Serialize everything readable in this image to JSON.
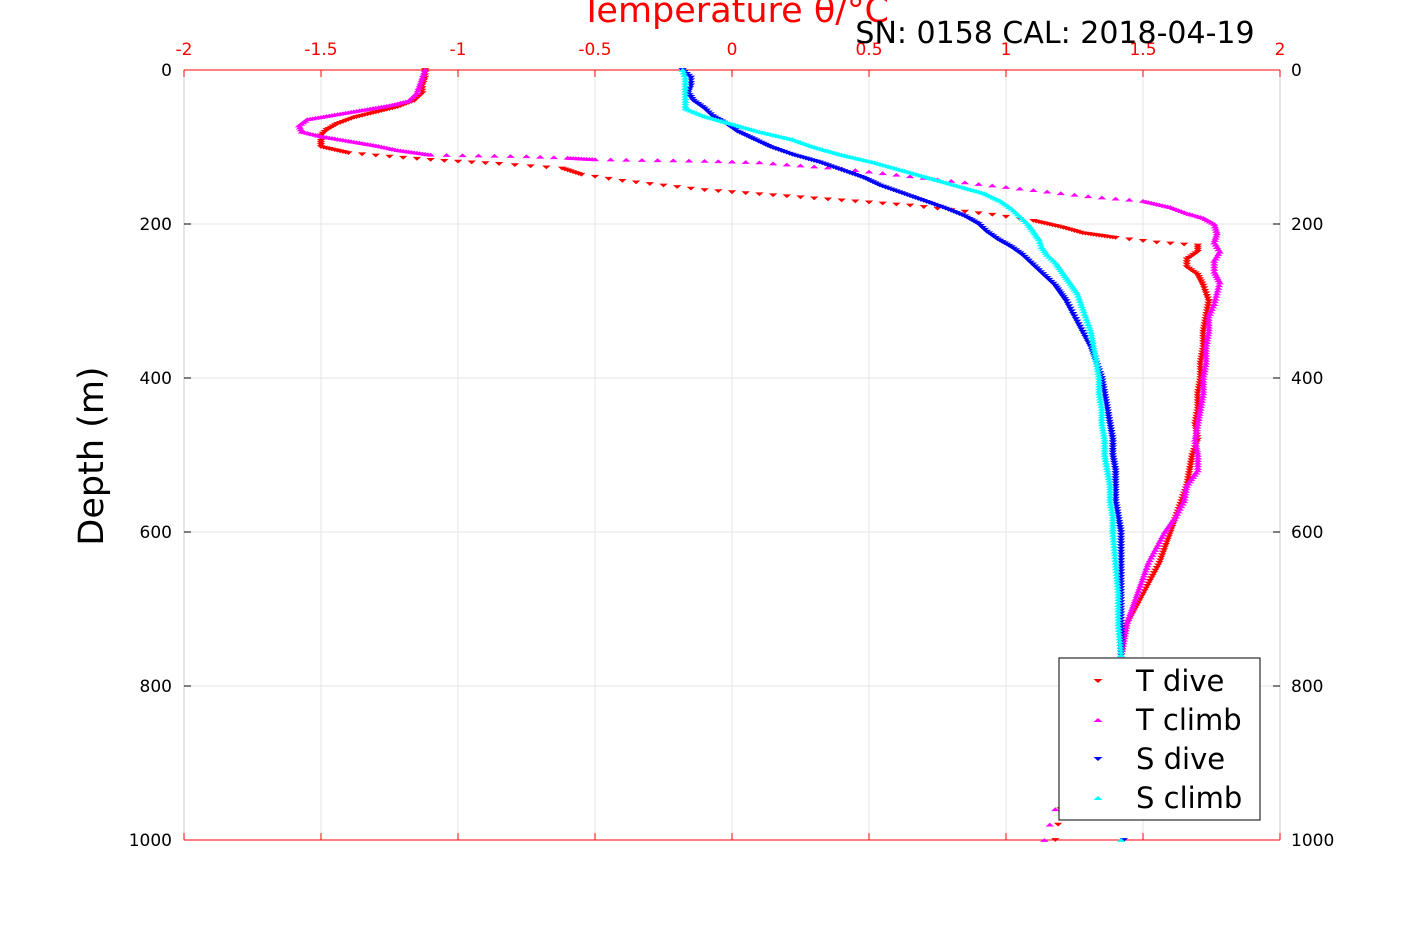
{
  "chart_data": {
    "type": "scatter",
    "title": "Temperature θ/°C",
    "subtitle": "SN: 0158  CAL: 2018-04-19",
    "xlabel": "Temperature θ/°C",
    "ylabel": "Depth (m)",
    "xlim": [
      -2,
      2
    ],
    "ylim": [
      0,
      1000
    ],
    "y_inverted": true,
    "grid": true,
    "x_axis_position": "top",
    "x_axis_color": "#ff0000",
    "x_ticks": [
      "-2",
      "-1.5",
      "-1",
      "-0.5",
      "0",
      "0.5",
      "1",
      "1.5",
      "2"
    ],
    "y_ticks": [
      "0",
      "200",
      "400",
      "600",
      "800",
      "1000"
    ],
    "legend_position": "bottom-right",
    "series": [
      {
        "name": "T dive",
        "marker": "triangle-down",
        "color": "#ff0000",
        "points": [
          [
            -1.12,
            0
          ],
          [
            -1.12,
            10
          ],
          [
            -1.13,
            20
          ],
          [
            -1.13,
            30
          ],
          [
            -1.16,
            40
          ],
          [
            -1.22,
            48
          ],
          [
            -1.3,
            55
          ],
          [
            -1.38,
            62
          ],
          [
            -1.44,
            70
          ],
          [
            -1.48,
            78
          ],
          [
            -1.5,
            85
          ],
          [
            -1.5,
            92
          ],
          [
            -1.5,
            100
          ],
          [
            -1.4,
            108
          ],
          [
            -1.2,
            114
          ],
          [
            -1.05,
            118
          ],
          [
            -0.85,
            122
          ],
          [
            -0.62,
            128
          ],
          [
            -0.55,
            136
          ],
          [
            -0.4,
            144
          ],
          [
            -0.25,
            150
          ],
          [
            -0.1,
            156
          ],
          [
            0.05,
            160
          ],
          [
            0.2,
            164
          ],
          [
            0.35,
            168
          ],
          [
            0.5,
            172
          ],
          [
            0.65,
            176
          ],
          [
            0.8,
            182
          ],
          [
            0.95,
            188
          ],
          [
            1.1,
            196
          ],
          [
            1.2,
            204
          ],
          [
            1.28,
            212
          ],
          [
            1.4,
            218
          ],
          [
            1.55,
            224
          ],
          [
            1.7,
            228
          ],
          [
            1.7,
            236
          ],
          [
            1.66,
            246
          ],
          [
            1.66,
            256
          ],
          [
            1.7,
            266
          ],
          [
            1.72,
            280
          ],
          [
            1.74,
            300
          ],
          [
            1.73,
            320
          ],
          [
            1.72,
            340
          ],
          [
            1.72,
            360
          ],
          [
            1.71,
            380
          ],
          [
            1.71,
            400
          ],
          [
            1.7,
            420
          ],
          [
            1.7,
            440
          ],
          [
            1.69,
            460
          ],
          [
            1.7,
            480
          ],
          [
            1.68,
            500
          ],
          [
            1.67,
            520
          ],
          [
            1.66,
            540
          ],
          [
            1.64,
            560
          ],
          [
            1.62,
            580
          ],
          [
            1.6,
            600
          ],
          [
            1.58,
            620
          ],
          [
            1.56,
            640
          ],
          [
            1.53,
            660
          ],
          [
            1.5,
            680
          ],
          [
            1.47,
            700
          ],
          [
            1.44,
            720
          ],
          [
            1.43,
            740
          ],
          [
            1.42,
            760
          ],
          [
            1.2,
            960
          ],
          [
            1.19,
            980
          ],
          [
            1.18,
            1000
          ]
        ]
      },
      {
        "name": "T climb",
        "marker": "triangle-up",
        "color": "#ff00ff",
        "points": [
          [
            -1.12,
            0
          ],
          [
            -1.13,
            10
          ],
          [
            -1.14,
            20
          ],
          [
            -1.15,
            30
          ],
          [
            -1.18,
            40
          ],
          [
            -1.25,
            46
          ],
          [
            -1.35,
            52
          ],
          [
            -1.45,
            58
          ],
          [
            -1.55,
            64
          ],
          [
            -1.58,
            72
          ],
          [
            -1.57,
            80
          ],
          [
            -1.5,
            86
          ],
          [
            -1.4,
            92
          ],
          [
            -1.3,
            98
          ],
          [
            -1.22,
            104
          ],
          [
            -1.1,
            110
          ],
          [
            -0.75,
            112
          ],
          [
            -0.6,
            114
          ],
          [
            -0.5,
            116
          ],
          [
            -0.1,
            118
          ],
          [
            0.1,
            120
          ],
          [
            0.25,
            124
          ],
          [
            0.4,
            128
          ],
          [
            0.55,
            134
          ],
          [
            0.7,
            140
          ],
          [
            0.85,
            146
          ],
          [
            1.0,
            152
          ],
          [
            1.15,
            158
          ],
          [
            1.3,
            164
          ],
          [
            1.5,
            170
          ],
          [
            1.6,
            178
          ],
          [
            1.66,
            186
          ],
          [
            1.72,
            192
          ],
          [
            1.76,
            200
          ],
          [
            1.77,
            212
          ],
          [
            1.76,
            224
          ],
          [
            1.78,
            236
          ],
          [
            1.76,
            248
          ],
          [
            1.76,
            262
          ],
          [
            1.78,
            276
          ],
          [
            1.77,
            290
          ],
          [
            1.76,
            304
          ],
          [
            1.74,
            320
          ],
          [
            1.74,
            340
          ],
          [
            1.73,
            360
          ],
          [
            1.73,
            380
          ],
          [
            1.72,
            400
          ],
          [
            1.72,
            420
          ],
          [
            1.71,
            440
          ],
          [
            1.7,
            460
          ],
          [
            1.69,
            480
          ],
          [
            1.7,
            500
          ],
          [
            1.7,
            520
          ],
          [
            1.66,
            540
          ],
          [
            1.65,
            560
          ],
          [
            1.62,
            580
          ],
          [
            1.58,
            600
          ],
          [
            1.55,
            620
          ],
          [
            1.52,
            640
          ],
          [
            1.5,
            660
          ],
          [
            1.48,
            680
          ],
          [
            1.46,
            700
          ],
          [
            1.44,
            720
          ],
          [
            1.43,
            740
          ],
          [
            1.42,
            760
          ],
          [
            1.18,
            960
          ],
          [
            1.16,
            980
          ],
          [
            1.14,
            1000
          ]
        ]
      },
      {
        "name": "S dive",
        "marker": "triangle-down",
        "color": "#0000ff",
        "points": [
          [
            -0.18,
            0
          ],
          [
            -0.15,
            10
          ],
          [
            -0.15,
            20
          ],
          [
            -0.16,
            30
          ],
          [
            -0.14,
            40
          ],
          [
            -0.1,
            50
          ],
          [
            -0.07,
            60
          ],
          [
            -0.02,
            70
          ],
          [
            0.02,
            80
          ],
          [
            0.08,
            90
          ],
          [
            0.14,
            100
          ],
          [
            0.22,
            110
          ],
          [
            0.32,
            120
          ],
          [
            0.4,
            130
          ],
          [
            0.48,
            140
          ],
          [
            0.54,
            150
          ],
          [
            0.62,
            160
          ],
          [
            0.7,
            170
          ],
          [
            0.78,
            180
          ],
          [
            0.85,
            190
          ],
          [
            0.9,
            200
          ],
          [
            0.93,
            210
          ],
          [
            0.97,
            220
          ],
          [
            1.02,
            230
          ],
          [
            1.06,
            240
          ],
          [
            1.09,
            250
          ],
          [
            1.12,
            260
          ],
          [
            1.15,
            270
          ],
          [
            1.18,
            280
          ],
          [
            1.2,
            290
          ],
          [
            1.22,
            300
          ],
          [
            1.25,
            320
          ],
          [
            1.28,
            340
          ],
          [
            1.31,
            360
          ],
          [
            1.33,
            380
          ],
          [
            1.35,
            400
          ],
          [
            1.36,
            420
          ],
          [
            1.37,
            440
          ],
          [
            1.38,
            460
          ],
          [
            1.39,
            480
          ],
          [
            1.39,
            500
          ],
          [
            1.4,
            520
          ],
          [
            1.4,
            540
          ],
          [
            1.4,
            560
          ],
          [
            1.41,
            580
          ],
          [
            1.42,
            600
          ],
          [
            1.42,
            640
          ],
          [
            1.42,
            680
          ],
          [
            1.42,
            720
          ],
          [
            1.42,
            760
          ],
          [
            1.41,
            900
          ],
          [
            1.42,
            960
          ],
          [
            1.43,
            1000
          ]
        ]
      },
      {
        "name": "S climb",
        "marker": "triangle-up",
        "color": "#00ffff",
        "points": [
          [
            -0.18,
            0
          ],
          [
            -0.17,
            10
          ],
          [
            -0.17,
            20
          ],
          [
            -0.17,
            30
          ],
          [
            -0.17,
            40
          ],
          [
            -0.17,
            50
          ],
          [
            -0.1,
            60
          ],
          [
            0.0,
            70
          ],
          [
            0.1,
            80
          ],
          [
            0.22,
            90
          ],
          [
            0.3,
            100
          ],
          [
            0.4,
            110
          ],
          [
            0.52,
            120
          ],
          [
            0.62,
            130
          ],
          [
            0.72,
            140
          ],
          [
            0.82,
            150
          ],
          [
            0.92,
            160
          ],
          [
            0.98,
            170
          ],
          [
            1.02,
            180
          ],
          [
            1.05,
            190
          ],
          [
            1.08,
            200
          ],
          [
            1.1,
            210
          ],
          [
            1.12,
            220
          ],
          [
            1.13,
            230
          ],
          [
            1.15,
            240
          ],
          [
            1.18,
            250
          ],
          [
            1.2,
            260
          ],
          [
            1.22,
            270
          ],
          [
            1.24,
            280
          ],
          [
            1.26,
            290
          ],
          [
            1.27,
            300
          ],
          [
            1.29,
            320
          ],
          [
            1.31,
            340
          ],
          [
            1.32,
            360
          ],
          [
            1.33,
            380
          ],
          [
            1.34,
            400
          ],
          [
            1.34,
            420
          ],
          [
            1.35,
            440
          ],
          [
            1.35,
            460
          ],
          [
            1.36,
            480
          ],
          [
            1.36,
            500
          ],
          [
            1.37,
            520
          ],
          [
            1.38,
            540
          ],
          [
            1.38,
            560
          ],
          [
            1.39,
            580
          ],
          [
            1.39,
            600
          ],
          [
            1.4,
            640
          ],
          [
            1.41,
            680
          ],
          [
            1.41,
            720
          ],
          [
            1.42,
            760
          ],
          [
            1.41,
            900
          ],
          [
            1.42,
            960
          ],
          [
            1.42,
            1000
          ]
        ]
      }
    ]
  }
}
